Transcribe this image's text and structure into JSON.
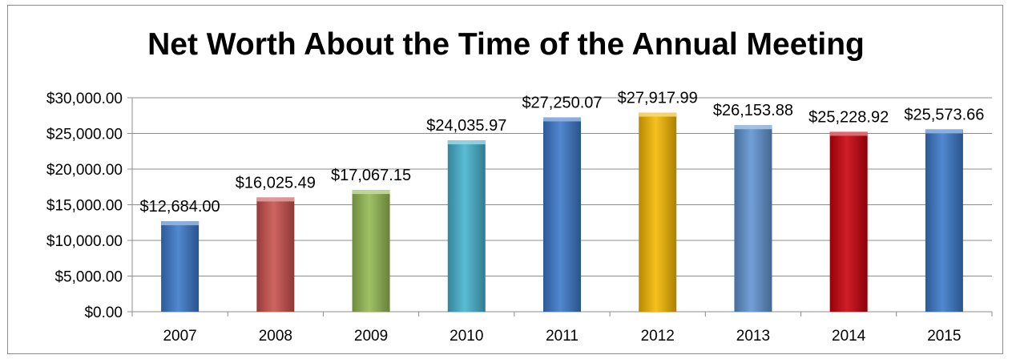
{
  "chart_data": {
    "type": "bar",
    "title": "Net Worth About the Time of the Annual Meeting",
    "xlabel": "",
    "ylabel": "",
    "categories": [
      "2007",
      "2008",
      "2009",
      "2010",
      "2011",
      "2012",
      "2013",
      "2014",
      "2015"
    ],
    "values": [
      12684.0,
      16025.49,
      17067.15,
      24035.97,
      27250.07,
      27917.99,
      26153.88,
      25228.92,
      25573.66
    ],
    "data_labels": [
      "$12,684.00",
      "$16,025.49",
      "$17,067.15",
      "$24,035.97",
      "$27,250.07",
      "$27,917.99",
      "$26,153.88",
      "$25,228.92",
      "$25,573.66"
    ],
    "y_ticks": [
      0,
      5000,
      10000,
      15000,
      20000,
      25000,
      30000
    ],
    "y_tick_labels": [
      "$0.00",
      "$5,000.00",
      "$10,000.00",
      "$15,000.00",
      "$20,000.00",
      "$25,000.00",
      "$30,000.00"
    ],
    "ylim": [
      0,
      30000
    ],
    "grid": true,
    "legend": "none",
    "bar_colors": [
      "#3a78c9",
      "#c9504b",
      "#93b952",
      "#45b3ce",
      "#3a78c9",
      "#f5b800",
      "#5f93d0",
      "#c8000b",
      "#3a78c9"
    ]
  }
}
